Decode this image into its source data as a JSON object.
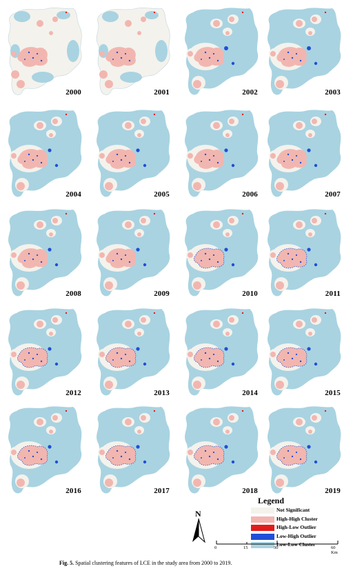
{
  "colors": {
    "not_significant": "#f4f2ec",
    "high_high": "#f2b6b0",
    "high_low": "#e01c1c",
    "low_high": "#1f4fd6",
    "low_low": "#a9d3e1"
  },
  "panels": [
    {
      "year": "2000",
      "pattern": "early"
    },
    {
      "year": "2001",
      "pattern": "early"
    },
    {
      "year": "2002",
      "pattern": "transition"
    },
    {
      "year": "2003",
      "pattern": "transition"
    },
    {
      "year": "2004",
      "pattern": "mid"
    },
    {
      "year": "2005",
      "pattern": "mid"
    },
    {
      "year": "2006",
      "pattern": "mid"
    },
    {
      "year": "2007",
      "pattern": "mid"
    },
    {
      "year": "2008",
      "pattern": "mid"
    },
    {
      "year": "2009",
      "pattern": "mid"
    },
    {
      "year": "2010",
      "pattern": "late"
    },
    {
      "year": "2011",
      "pattern": "late"
    },
    {
      "year": "2012",
      "pattern": "late"
    },
    {
      "year": "2013",
      "pattern": "late"
    },
    {
      "year": "2014",
      "pattern": "late"
    },
    {
      "year": "2015",
      "pattern": "late"
    },
    {
      "year": "2016",
      "pattern": "late"
    },
    {
      "year": "2017",
      "pattern": "late"
    },
    {
      "year": "2018",
      "pattern": "late"
    },
    {
      "year": "2019",
      "pattern": "late"
    }
  ],
  "legend": {
    "title": "Legend",
    "items": [
      {
        "label": "Not Significant",
        "color_key": "not_significant"
      },
      {
        "label": "High-High Cluster",
        "color_key": "high_high"
      },
      {
        "label": "High-Low Outlier",
        "color_key": "high_low"
      },
      {
        "label": "Low-High Outlier",
        "color_key": "low_high"
      },
      {
        "label": "Low-Low Cluster",
        "color_key": "low_low"
      }
    ]
  },
  "north_label": "N",
  "scale": {
    "ticks": [
      "0",
      "15",
      "30",
      "60 Km"
    ]
  },
  "caption": {
    "label": "Fig. 5.",
    "text": "Spatial clustering features of LCE in the study area from 2000 to 2019."
  }
}
